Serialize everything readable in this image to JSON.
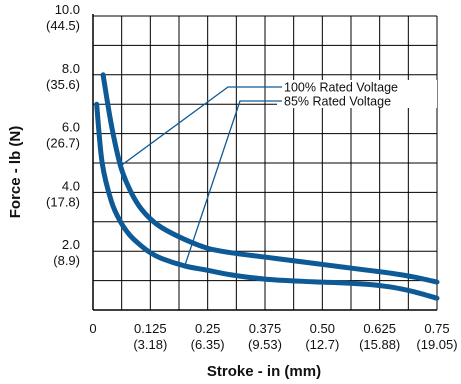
{
  "chart_data": {
    "type": "line",
    "xlabel": "Stroke - in (mm)",
    "ylabel": "Force - lb (N)",
    "xlim": [
      0,
      0.75
    ],
    "ylim": [
      0,
      10
    ],
    "grid": true,
    "x_ticks": [
      {
        "value": 0,
        "label": "0",
        "sub": ""
      },
      {
        "value": 0.125,
        "label": "0.125",
        "sub": "(3.18)"
      },
      {
        "value": 0.25,
        "label": "0.25",
        "sub": "(6.35)"
      },
      {
        "value": 0.375,
        "label": "0.375",
        "sub": "(9.53)"
      },
      {
        "value": 0.5,
        "label": "0.50",
        "sub": "(12.7)"
      },
      {
        "value": 0.625,
        "label": "0.625",
        "sub": "(15.88)"
      },
      {
        "value": 0.75,
        "label": "0.75",
        "sub": "(19.05)"
      }
    ],
    "y_ticks": [
      {
        "value": 2,
        "label": "2.0",
        "sub": "(8.9)"
      },
      {
        "value": 4,
        "label": "4.0",
        "sub": "(17.8)"
      },
      {
        "value": 6,
        "label": "6.0",
        "sub": "(26.7)"
      },
      {
        "value": 8,
        "label": "8.0",
        "sub": "(35.6)"
      },
      {
        "value": 10,
        "label": "10.0",
        "sub": "(44.5)"
      }
    ],
    "series": [
      {
        "name": "100% Rated Voltage",
        "x": [
          0.022,
          0.04,
          0.06,
          0.08,
          0.1,
          0.125,
          0.15,
          0.2,
          0.25,
          0.3,
          0.375,
          0.45,
          0.5,
          0.55,
          0.6,
          0.65,
          0.7,
          0.75
        ],
        "y": [
          8.0,
          6.3,
          4.9,
          4.1,
          3.55,
          3.1,
          2.8,
          2.4,
          2.1,
          1.95,
          1.8,
          1.65,
          1.55,
          1.45,
          1.35,
          1.25,
          1.12,
          0.95
        ]
      },
      {
        "name": "85% Rated Voltage",
        "x": [
          0.008,
          0.02,
          0.04,
          0.06,
          0.08,
          0.1,
          0.125,
          0.15,
          0.2,
          0.25,
          0.3,
          0.375,
          0.45,
          0.5,
          0.55,
          0.6,
          0.65,
          0.7,
          0.75
        ],
        "y": [
          7.0,
          5.0,
          3.7,
          3.0,
          2.55,
          2.25,
          1.95,
          1.75,
          1.5,
          1.35,
          1.2,
          1.05,
          0.98,
          0.95,
          0.92,
          0.87,
          0.78,
          0.62,
          0.4
        ]
      }
    ],
    "legend": "top-right",
    "line_color": "#0d5a96",
    "leader_color": "#0d5a96"
  }
}
